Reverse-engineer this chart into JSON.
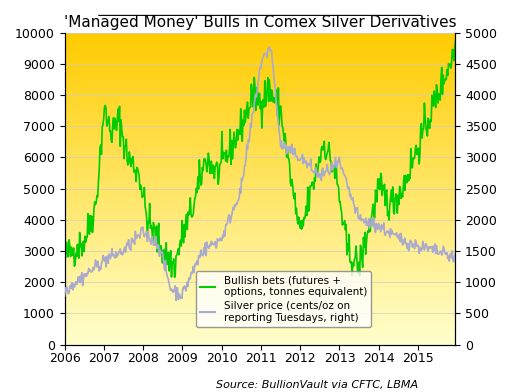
{
  "title": "'Managed Money' Bulls in Comex Silver Derivatives",
  "source_text": "Source: BullionVault via CFTC, LBMA",
  "left_ylim": [
    0,
    10000
  ],
  "right_ylim": [
    0,
    5000
  ],
  "left_yticks": [
    0,
    1000,
    2000,
    3000,
    4000,
    5000,
    6000,
    7000,
    8000,
    9000,
    10000
  ],
  "right_yticks": [
    0,
    500,
    1000,
    1500,
    2000,
    2500,
    3000,
    3500,
    4000,
    4500,
    5000
  ],
  "xticks": [
    2006,
    2007,
    2008,
    2009,
    2010,
    2011,
    2012,
    2013,
    2014,
    2015
  ],
  "xlim": [
    2006.0,
    2015.95
  ],
  "green_color": "#00cc00",
  "silver_color": "#aaaacc",
  "bg_gradient_top": "#ffcc00",
  "bg_gradient_bottom": "#ffffcc",
  "grid_color": "#cccccc",
  "legend_label_green": "Bullish bets (futures +\noptions, tonnes equivalent)",
  "legend_label_silver": "Silver price (cents/oz on\nreporting Tuesdays, right)",
  "title_fontsize": 11,
  "tick_fontsize": 9,
  "source_fontsize": 8
}
